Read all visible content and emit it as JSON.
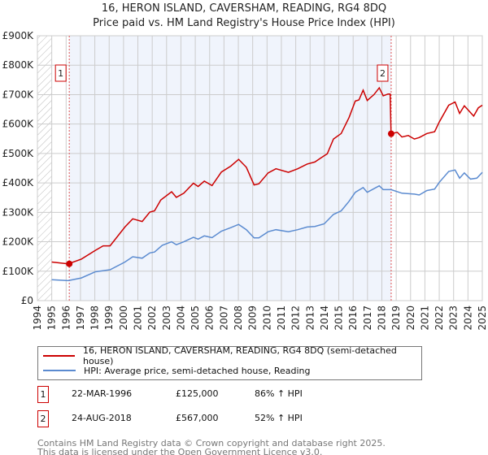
{
  "title": "16, HERON ISLAND, CAVERSHAM, READING, RG4 8DQ",
  "subtitle": "Price paid vs. HM Land Registry's House Price Index (HPI)",
  "chart_data": {
    "type": "line",
    "xlim": [
      1994,
      2025
    ],
    "ylim": [
      0,
      900000
    ],
    "x_ticks": [
      "1994",
      "1995",
      "1996",
      "1997",
      "1998",
      "1999",
      "2000",
      "2001",
      "2002",
      "2003",
      "2004",
      "2005",
      "2006",
      "2007",
      "2008",
      "2009",
      "2010",
      "2011",
      "2012",
      "2013",
      "2014",
      "2015",
      "2016",
      "2017",
      "2018",
      "2019",
      "2020",
      "2021",
      "2022",
      "2023",
      "2024",
      "2025"
    ],
    "y_ticks": [
      {
        "v": 0,
        "label": "£0"
      },
      {
        "v": 100000,
        "label": "£100K"
      },
      {
        "v": 200000,
        "label": "£200K"
      },
      {
        "v": 300000,
        "label": "£300K"
      },
      {
        "v": 400000,
        "label": "£400K"
      },
      {
        "v": 500000,
        "label": "£500K"
      },
      {
        "v": 600000,
        "label": "£600K"
      },
      {
        "v": 700000,
        "label": "£700K"
      },
      {
        "v": 800000,
        "label": "£800K"
      },
      {
        "v": 900000,
        "label": "£900K"
      }
    ],
    "grid": true,
    "series": [
      {
        "name": "16, HERON ISLAND, CAVERSHAM, READING, RG4 8DQ (semi-detached house)",
        "color": "#cc0000",
        "x": [
          1995,
          1996.15,
          1997.06,
          1998.04,
          1998.58,
          1999.06,
          2000.1,
          2000.64,
          2001.3,
          2001.83,
          2002.16,
          2002.6,
          2003.35,
          2003.68,
          2004.2,
          2004.87,
          2005.2,
          2005.63,
          2006.17,
          2006.82,
          2007.47,
          2008.02,
          2008.56,
          2009.1,
          2009.43,
          2010.08,
          2010.62,
          2011.49,
          2012.14,
          2012.79,
          2013.33,
          2013.76,
          2014.2,
          2014.63,
          2015.17,
          2015.72,
          2016.15,
          2016.4,
          2016.7,
          2016.98,
          2017.45,
          2017.82,
          2018.1,
          2018.43,
          2018.58,
          2018.64,
          2019.08,
          2019.4,
          2019.84,
          2020.27,
          2020.6,
          2021.14,
          2021.68,
          2022,
          2022.66,
          2023.1,
          2023.42,
          2023.75,
          2024.4,
          2024.72,
          2025
        ],
        "y": [
          131000,
          125000,
          141000,
          171000,
          186000,
          186000,
          250000,
          278000,
          269000,
          301000,
          305000,
          342000,
          370000,
          351000,
          365000,
          399000,
          388000,
          406000,
          391000,
          437000,
          457000,
          480000,
          453000,
          393000,
          397000,
          434000,
          448000,
          436000,
          448000,
          464000,
          471000,
          485000,
          499000,
          549000,
          568000,
          623000,
          678000,
          682000,
          715000,
          680000,
          700000,
          723000,
          696000,
          702000,
          702000,
          567000,
          572000,
          556000,
          561000,
          549000,
          554000,
          568000,
          574000,
          607000,
          664000,
          675000,
          636000,
          662000,
          627000,
          655000,
          664000
        ]
      },
      {
        "name": "HPI: Average price, semi-detached house, Reading",
        "color": "#5b8bd0",
        "x": [
          1995,
          1996.15,
          1997.06,
          1998.04,
          1999.06,
          2000.1,
          2000.64,
          2001.3,
          2001.83,
          2002.16,
          2002.7,
          2003.35,
          2003.68,
          2004.2,
          2004.87,
          2005.2,
          2005.63,
          2006.17,
          2006.82,
          2007.47,
          2008.02,
          2008.56,
          2009.1,
          2009.43,
          2010.08,
          2010.62,
          2011.49,
          2012.14,
          2012.79,
          2013.33,
          2013.98,
          2014.63,
          2015.17,
          2015.72,
          2016.15,
          2016.7,
          2016.98,
          2017.82,
          2018.1,
          2018.64,
          2019.4,
          2020.27,
          2020.6,
          2021.14,
          2021.68,
          2022,
          2022.66,
          2023.1,
          2023.42,
          2023.75,
          2024.18,
          2024.62,
          2025
        ],
        "y": [
          71000,
          68000,
          77000,
          98000,
          105000,
          131000,
          149000,
          144000,
          162000,
          165000,
          188000,
          200000,
          190000,
          200000,
          215000,
          209000,
          220000,
          214000,
          236000,
          248000,
          259000,
          241000,
          213000,
          213000,
          234000,
          241000,
          234000,
          241000,
          250000,
          252000,
          261000,
          293000,
          305000,
          338000,
          368000,
          384000,
          368000,
          390000,
          377000,
          377000,
          365000,
          362000,
          359000,
          374000,
          379000,
          402000,
          439000,
          444000,
          416000,
          434000,
          413000,
          416000,
          436000
        ]
      }
    ],
    "sales": [
      {
        "label": "1",
        "x": 1996.22,
        "y": 125000
      },
      {
        "label": "2",
        "x": 2018.65,
        "y": 567000
      }
    ],
    "legend_placement": "below"
  },
  "transactions": [
    {
      "num": "1",
      "date": "22-MAR-1996",
      "price": "£125,000",
      "hpi": "86% ↑ HPI"
    },
    {
      "num": "2",
      "date": "24-AUG-2018",
      "price": "£567,000",
      "hpi": "52% ↑ HPI"
    }
  ],
  "footer": {
    "line1": "Contains HM Land Registry data © Crown copyright and database right 2025.",
    "line2": "This data is licensed under the Open Government Licence v3.0."
  }
}
